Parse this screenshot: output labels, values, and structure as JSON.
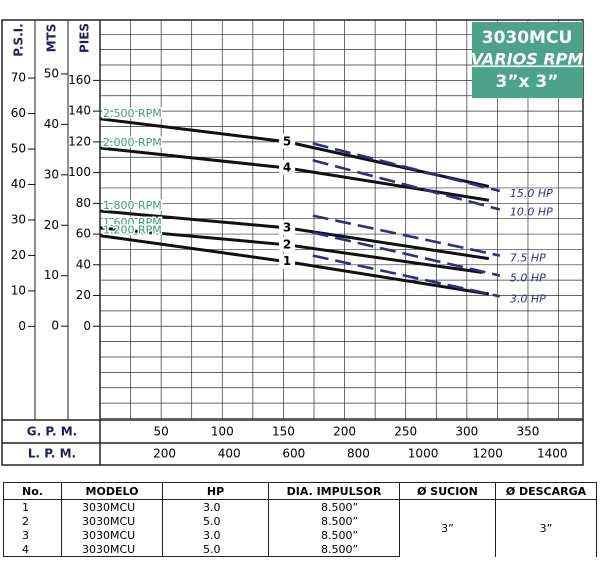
{
  "chart_data": {
    "type": "line",
    "title": "3030MCU",
    "subtitle": "VARIOS RPM",
    "size": "3”x 3”",
    "xlabel": "G. P. M.",
    "x2label": "L. P. M.",
    "ylabel": "PIES",
    "y2label": "P.S.I.",
    "y3label": "MTS",
    "xlim": [
      0,
      395
    ],
    "xticks": [
      50,
      100,
      150,
      200,
      250,
      300,
      350
    ],
    "x2lim": [
      0,
      1495
    ],
    "x2ticks": [
      200,
      400,
      600,
      800,
      1000,
      1200,
      1400
    ],
    "ylim": [
      -61,
      198
    ],
    "yticks": [
      0,
      20,
      40,
      60,
      80,
      100,
      120,
      140,
      160
    ],
    "y2lim": [
      -26.4,
      85.8
    ],
    "y2ticks": [
      0,
      10,
      20,
      30,
      40,
      50,
      60,
      70
    ],
    "y3lim": [
      -18.6,
      60.3
    ],
    "y3ticks": [
      0,
      10,
      20,
      30,
      40,
      50
    ],
    "grid": true,
    "series": [
      {
        "name": "2.500 RPM",
        "label": "5",
        "color": "#111111",
        "x": [
          0,
          153,
          318
        ],
        "values": [
          135,
          120,
          91
        ]
      },
      {
        "name": "2.000 RPM",
        "label": "4",
        "color": "#111111",
        "x": [
          0,
          153,
          318
        ],
        "values": [
          116,
          103,
          82
        ]
      },
      {
        "name": "1.800 RPM",
        "label": "3",
        "color": "#111111",
        "x": [
          0,
          153,
          318
        ],
        "values": [
          75,
          64,
          44
        ]
      },
      {
        "name": "1.600 RPM",
        "label": "2",
        "color": "#111111",
        "x": [
          0,
          153,
          313
        ],
        "values": [
          64,
          53,
          35
        ]
      },
      {
        "name": "1.200 RPM",
        "label": "1",
        "color": "#111111",
        "x": [
          0,
          153,
          318
        ],
        "values": [
          59,
          42,
          21
        ]
      },
      {
        "name": "15.0 HP",
        "color": "#2a2f8e",
        "dashed": true,
        "x": [
          174,
          327
        ],
        "values": [
          119,
          88
        ]
      },
      {
        "name": "10.0 HP",
        "color": "#2a2f8e",
        "dashed": true,
        "x": [
          174,
          327
        ],
        "values": [
          108,
          76
        ]
      },
      {
        "name": "7.5 HP",
        "color": "#2a2f8e",
        "dashed": true,
        "x": [
          174,
          327
        ],
        "values": [
          72,
          46
        ]
      },
      {
        "name": "5.0 HP",
        "color": "#2a2f8e",
        "dashed": true,
        "x": [
          174,
          327
        ],
        "values": [
          61,
          33
        ]
      },
      {
        "name": "3.0 HP",
        "color": "#2a2f8e",
        "dashed": true,
        "x": [
          174,
          327
        ],
        "values": [
          46,
          19.5
        ]
      }
    ]
  },
  "table": {
    "header": [
      "No.",
      "MODELO",
      "HP",
      "DIA. IMPULSOR",
      "Ø SUCION",
      "Ø DESCARGA"
    ],
    "rows": [
      [
        "1",
        "3030MCU",
        "3.0",
        "8.500”"
      ],
      [
        "2",
        "3030MCU",
        "5.0",
        "8.500”"
      ],
      [
        "3",
        "3030MCU",
        "3.0",
        "8.500”"
      ],
      [
        "4",
        "3030MCU",
        "5.0",
        "8.500”"
      ]
    ],
    "suction": "3”",
    "discharge": "3”"
  }
}
